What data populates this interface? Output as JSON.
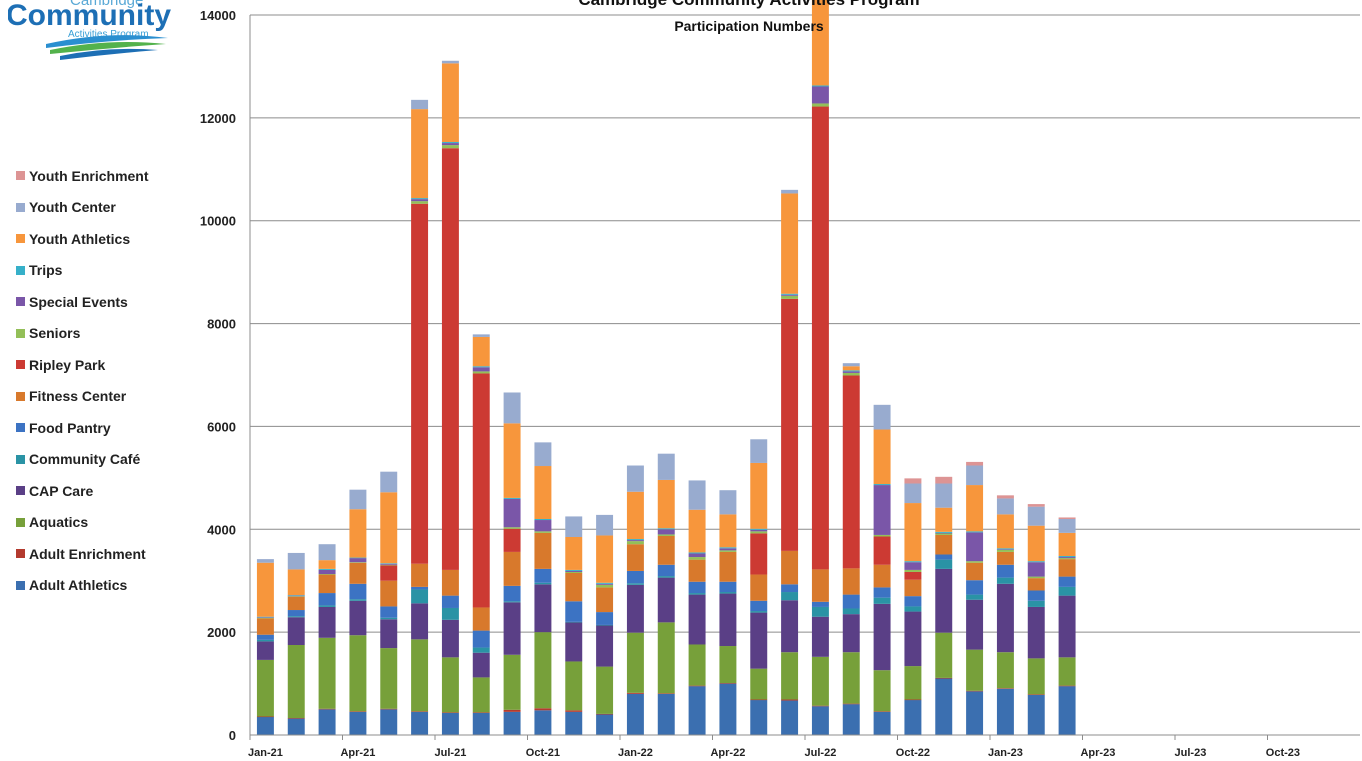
{
  "logo": {
    "line1": "Cambridge",
    "line2": "Community",
    "line3": "Activities Program"
  },
  "chart_data": {
    "type": "bar",
    "stacked": true,
    "title": "Cambridge Community Activities Program",
    "subtitle": "Participation Numbers",
    "xlabel": "",
    "ylabel": "",
    "ylim": [
      0,
      14000
    ],
    "yticks": [
      0,
      2000,
      4000,
      6000,
      8000,
      10000,
      12000,
      14000
    ],
    "ytick_labels": [
      "0",
      "2000",
      "4000",
      "6000",
      "8000",
      "10000",
      "12000",
      "14000"
    ],
    "x_tick_labels": [
      "Jan-21",
      "Apr-21",
      "Jul-21",
      "Oct-21",
      "Jan-22",
      "Apr-22",
      "Jul-22",
      "Oct-22",
      "Jan-23",
      "Apr-23",
      "Jul-23",
      "Oct-23"
    ],
    "x_span_months": 36,
    "grid": true,
    "legend_position": "left",
    "categories": [
      "Jan-21",
      "Feb-21",
      "Mar-21",
      "Apr-21",
      "May-21",
      "Jun-21",
      "Jul-21",
      "Aug-21",
      "Sep-21",
      "Oct-21",
      "Nov-21",
      "Dec-21",
      "Jan-22",
      "Feb-22",
      "Mar-22",
      "Apr-22",
      "May-22",
      "Jun-22",
      "Jul-22",
      "Aug-22",
      "Sep-22",
      "Oct-22",
      "Nov-22",
      "Dec-22",
      "Jan-23",
      "Feb-23",
      "Mar-23"
    ],
    "series": [
      {
        "name": "Adult Athletics",
        "color": "#3b6fb0",
        "values": [
          350,
          320,
          500,
          450,
          500,
          450,
          430,
          430,
          450,
          480,
          450,
          400,
          800,
          800,
          950,
          1000,
          680,
          670,
          560,
          600,
          450,
          680,
          1100,
          850,
          900,
          780,
          950
        ]
      },
      {
        "name": "Adult Enrichment",
        "color": "#b33a2e",
        "values": [
          10,
          10,
          10,
          10,
          10,
          10,
          10,
          10,
          40,
          40,
          30,
          10,
          20,
          10,
          10,
          10,
          10,
          20,
          10,
          10,
          10,
          10,
          10,
          10,
          10,
          10,
          10
        ]
      },
      {
        "name": "Aquatics",
        "color": "#77a03a",
        "values": [
          1100,
          1420,
          1380,
          1480,
          1180,
          1400,
          1070,
          680,
          1070,
          1480,
          950,
          920,
          1170,
          1380,
          800,
          720,
          600,
          920,
          950,
          1000,
          800,
          650,
          880,
          800,
          700,
          700,
          550
        ]
      },
      {
        "name": "CAP Care",
        "color": "#5a3f86",
        "values": [
          360,
          540,
          600,
          670,
          560,
          700,
          730,
          480,
          1020,
          930,
          760,
          800,
          930,
          870,
          970,
          1020,
          1090,
          1010,
          780,
          740,
          1290,
          1060,
          1240,
          970,
          1330,
          1000,
          1200
        ]
      },
      {
        "name": "Community Café",
        "color": "#2a93a5",
        "values": [
          30,
          20,
          30,
          30,
          30,
          270,
          230,
          100,
          20,
          30,
          10,
          10,
          30,
          30,
          30,
          30,
          30,
          160,
          190,
          110,
          120,
          100,
          180,
          100,
          120,
          120,
          170
        ]
      },
      {
        "name": "Food Pantry",
        "color": "#3c73c3",
        "values": [
          100,
          120,
          240,
          300,
          220,
          50,
          240,
          330,
          300,
          270,
          400,
          250,
          240,
          220,
          220,
          200,
          200,
          150,
          100,
          270,
          200,
          200,
          100,
          280,
          250,
          200,
          200
        ]
      },
      {
        "name": "Fitness Center",
        "color": "#d8792c",
        "values": [
          320,
          260,
          360,
          410,
          500,
          450,
          500,
          450,
          660,
          700,
          550,
          480,
          520,
          560,
          430,
          580,
          510,
          650,
          630,
          510,
          440,
          320,
          380,
          340,
          250,
          240,
          340
        ]
      },
      {
        "name": "Ripley Park",
        "color": "#cc3a33",
        "values": [
          0,
          0,
          0,
          0,
          300,
          7000,
          8200,
          4550,
          450,
          0,
          0,
          0,
          0,
          0,
          0,
          0,
          800,
          4900,
          9000,
          3750,
          550,
          150,
          0,
          0,
          0,
          0,
          0
        ]
      },
      {
        "name": "Seniors",
        "color": "#93bf58",
        "values": [
          10,
          10,
          10,
          10,
          10,
          50,
          60,
          40,
          30,
          30,
          20,
          50,
          60,
          30,
          50,
          30,
          40,
          60,
          60,
          50,
          30,
          40,
          30,
          30,
          40,
          30,
          20
        ]
      },
      {
        "name": "Special Events",
        "color": "#7a56a8",
        "values": [
          10,
          10,
          80,
          80,
          20,
          40,
          40,
          80,
          550,
          220,
          20,
          20,
          20,
          100,
          70,
          40,
          30,
          20,
          330,
          30,
          970,
          150,
          10,
          560,
          10,
          280,
          20
        ]
      },
      {
        "name": "Trips",
        "color": "#36b0c9",
        "values": [
          10,
          10,
          20,
          10,
          10,
          20,
          20,
          20,
          20,
          20,
          20,
          20,
          20,
          20,
          20,
          20,
          20,
          20,
          20,
          20,
          20,
          20,
          20,
          20,
          20,
          20,
          20
        ]
      },
      {
        "name": "Youth Athletics",
        "color": "#f7963c",
        "values": [
          1050,
          500,
          170,
          940,
          1380,
          1730,
          1530,
          570,
          1450,
          1030,
          640,
          920,
          920,
          940,
          830,
          640,
          1280,
          1950,
          1800,
          80,
          1060,
          1130,
          470,
          900,
          660,
          690,
          450
        ]
      },
      {
        "name": "Youth Center",
        "color": "#98abcf",
        "values": [
          70,
          320,
          310,
          380,
          400,
          180,
          50,
          50,
          600,
          460,
          400,
          400,
          510,
          510,
          570,
          470,
          460,
          70,
          0,
          60,
          480,
          380,
          470,
          380,
          310,
          370,
          270
        ]
      },
      {
        "name": "Youth Enrichment",
        "color": "#dd9494",
        "values": [
          0,
          0,
          0,
          0,
          0,
          0,
          0,
          0,
          0,
          0,
          0,
          0,
          0,
          0,
          0,
          0,
          0,
          0,
          0,
          0,
          0,
          100,
          130,
          70,
          60,
          50,
          30
        ]
      }
    ]
  }
}
